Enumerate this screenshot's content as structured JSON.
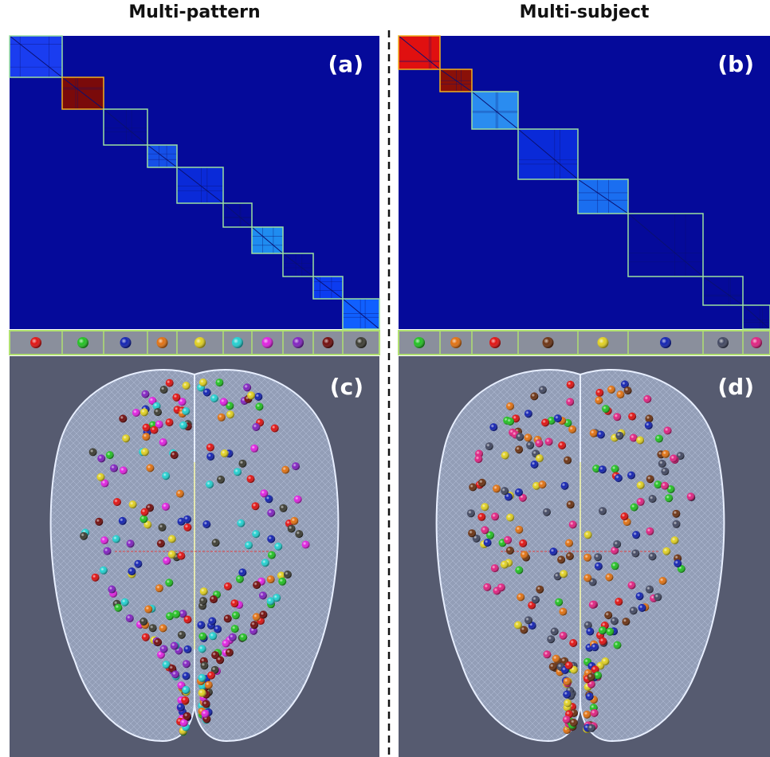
{
  "columns": [
    {
      "title": "Multi-pattern",
      "matrix_label": "(a)",
      "brain_label": "(c)"
    },
    {
      "title": "Multi-subject",
      "matrix_label": "(b)",
      "brain_label": "(d)"
    }
  ]
}
